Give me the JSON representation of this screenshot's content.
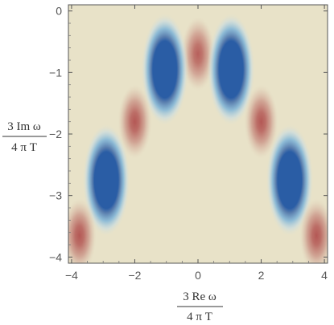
{
  "chart_data": {
    "type": "heatmap",
    "title": "",
    "xlabel": {
      "numerator": "3 Re ω",
      "denominator": "4 π T"
    },
    "ylabel": {
      "numerator": "3 Im ω",
      "denominator": "4 π T"
    },
    "xlim": [
      -4.1,
      4.1
    ],
    "ylim": [
      -4.1,
      0.1
    ],
    "x_ticks": [
      -4,
      -2,
      0,
      2,
      4
    ],
    "x_tick_labels": [
      "−4",
      "−2",
      "0",
      "2",
      "4"
    ],
    "y_ticks": [
      0,
      -1,
      -2,
      -3,
      -4
    ],
    "y_tick_labels": [
      "0",
      "−1",
      "−2",
      "−3",
      "−4"
    ],
    "grid": false,
    "colormap": [
      "#2a5da5",
      "#e8e2c8",
      "#a8383a"
    ],
    "background_color": "#e8e2c8",
    "features": [
      {
        "x": 0.0,
        "y": -0.7,
        "value": 0.75
      },
      {
        "x": -1.05,
        "y": -0.95,
        "value": -1.0
      },
      {
        "x": 1.05,
        "y": -0.95,
        "value": -1.0
      },
      {
        "x": -2.0,
        "y": -1.8,
        "value": 0.8
      },
      {
        "x": 2.0,
        "y": -1.8,
        "value": 0.8
      },
      {
        "x": -2.9,
        "y": -2.75,
        "value": -1.0
      },
      {
        "x": 2.9,
        "y": -2.75,
        "value": -1.0
      },
      {
        "x": -3.75,
        "y": -3.65,
        "value": 0.8
      },
      {
        "x": 3.75,
        "y": -3.65,
        "value": 0.8
      }
    ]
  }
}
